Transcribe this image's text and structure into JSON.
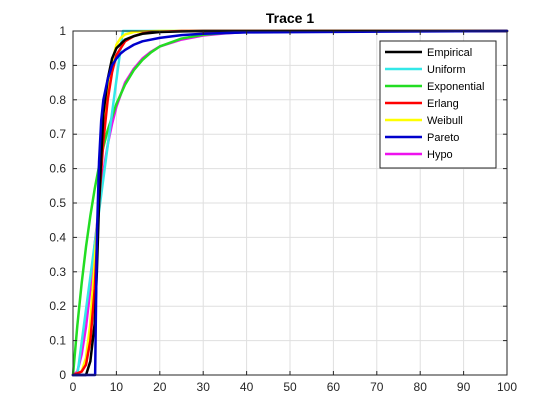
{
  "chart_data": {
    "type": "line",
    "title": "Trace 1",
    "xlabel": "",
    "ylabel": "",
    "xlim": [
      0,
      100
    ],
    "ylim": [
      0,
      1
    ],
    "grid": true,
    "legend_position": "top-right",
    "x_ticks": [
      "0",
      "10",
      "20",
      "30",
      "40",
      "50",
      "60",
      "70",
      "80",
      "90",
      "100"
    ],
    "y_ticks": [
      "0",
      "0.1",
      "0.2",
      "0.3",
      "0.4",
      "0.5",
      "0.6",
      "0.7",
      "0.8",
      "0.9",
      "1"
    ],
    "series": [
      {
        "name": "Empirical",
        "color": "#000000",
        "x": [
          0,
          3,
          4,
          5,
          5.5,
          6,
          6.5,
          7,
          8,
          9,
          10,
          12,
          14,
          16,
          20,
          25,
          30,
          40,
          100
        ],
        "y": [
          0,
          0,
          0.04,
          0.15,
          0.3,
          0.5,
          0.63,
          0.76,
          0.86,
          0.92,
          0.95,
          0.975,
          0.985,
          0.992,
          0.997,
          0.999,
          1,
          1,
          1
        ]
      },
      {
        "name": "Uniform",
        "color": "#33e8e8",
        "x": [
          0,
          1,
          11.5,
          100
        ],
        "y": [
          0,
          0,
          1,
          1
        ]
      },
      {
        "name": "Exponential",
        "color": "#22dd22",
        "x": [
          0,
          1,
          2,
          3,
          4,
          5,
          6,
          7,
          8,
          10,
          12,
          14,
          16,
          18,
          20,
          25,
          30,
          35,
          40,
          50,
          60,
          100
        ],
        "y": [
          0,
          0.144,
          0.267,
          0.373,
          0.463,
          0.541,
          0.607,
          0.663,
          0.712,
          0.788,
          0.844,
          0.886,
          0.916,
          0.938,
          0.955,
          0.978,
          0.989,
          0.994,
          0.997,
          0.999,
          1,
          1
        ]
      },
      {
        "name": "Erlang",
        "color": "#ff0000",
        "x": [
          0,
          2,
          3,
          4,
          5,
          6,
          7,
          8,
          9,
          10,
          12,
          14,
          16,
          20,
          25,
          30,
          100
        ],
        "y": [
          0,
          0.01,
          0.03,
          0.1,
          0.25,
          0.5,
          0.68,
          0.8,
          0.88,
          0.93,
          0.97,
          0.985,
          0.993,
          0.998,
          1,
          1,
          1
        ]
      },
      {
        "name": "Weibull",
        "color": "#ffff00",
        "x": [
          0,
          2,
          3,
          4,
          5,
          6,
          7,
          8,
          9,
          10,
          11,
          12,
          14,
          16,
          20,
          25,
          100
        ],
        "y": [
          0,
          0.01,
          0.05,
          0.15,
          0.33,
          0.52,
          0.69,
          0.82,
          0.91,
          0.96,
          0.98,
          0.99,
          0.997,
          0.999,
          1,
          1,
          1
        ]
      },
      {
        "name": "Pareto",
        "color": "#0000cc",
        "x": [
          0,
          5.1,
          5.5,
          6,
          6.5,
          7,
          8,
          9,
          10,
          11,
          12,
          14,
          16,
          20,
          25,
          30,
          40,
          100
        ],
        "y": [
          0,
          0,
          0.4,
          0.62,
          0.74,
          0.8,
          0.86,
          0.9,
          0.92,
          0.935,
          0.945,
          0.96,
          0.97,
          0.98,
          0.988,
          0.992,
          0.996,
          1
        ]
      },
      {
        "name": "Hypo",
        "color": "#ee11ee",
        "x": [
          0,
          1,
          2,
          3,
          4,
          5,
          6,
          7,
          8,
          9,
          10,
          12,
          14,
          16,
          18,
          20,
          25,
          30,
          35,
          40,
          50,
          100
        ],
        "y": [
          0,
          0.01,
          0.06,
          0.14,
          0.25,
          0.38,
          0.49,
          0.59,
          0.67,
          0.73,
          0.78,
          0.85,
          0.89,
          0.92,
          0.94,
          0.955,
          0.975,
          0.987,
          0.993,
          0.997,
          1,
          1
        ]
      }
    ]
  }
}
